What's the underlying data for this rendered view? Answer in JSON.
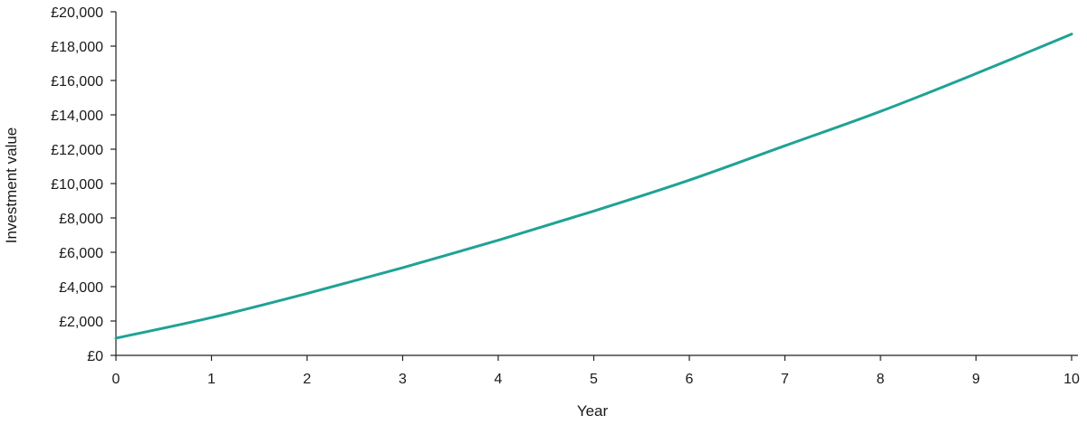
{
  "chart_data": {
    "type": "line",
    "title": "",
    "xlabel": "Year",
    "ylabel": "Investment value",
    "x": [
      0,
      1,
      2,
      3,
      4,
      5,
      6,
      7,
      8,
      9,
      10
    ],
    "series": [
      {
        "name": "",
        "color": "#1fa295",
        "values": [
          1000,
          2200,
          3600,
          5100,
          6700,
          8400,
          10200,
          12200,
          14200,
          16400,
          18700
        ]
      }
    ],
    "xlim": [
      0,
      10
    ],
    "ylim": [
      0,
      20000
    ],
    "x_ticks": [
      "0",
      "1",
      "2",
      "3",
      "4",
      "5",
      "6",
      "7",
      "8",
      "9",
      "10"
    ],
    "y_ticks": [
      "£0",
      "£2,000",
      "£4,000",
      "£6,000",
      "£8,000",
      "£10,000",
      "£12,000",
      "£14,000",
      "£16,000",
      "£18,000",
      "£20,000"
    ],
    "grid": false,
    "legend": "none"
  }
}
